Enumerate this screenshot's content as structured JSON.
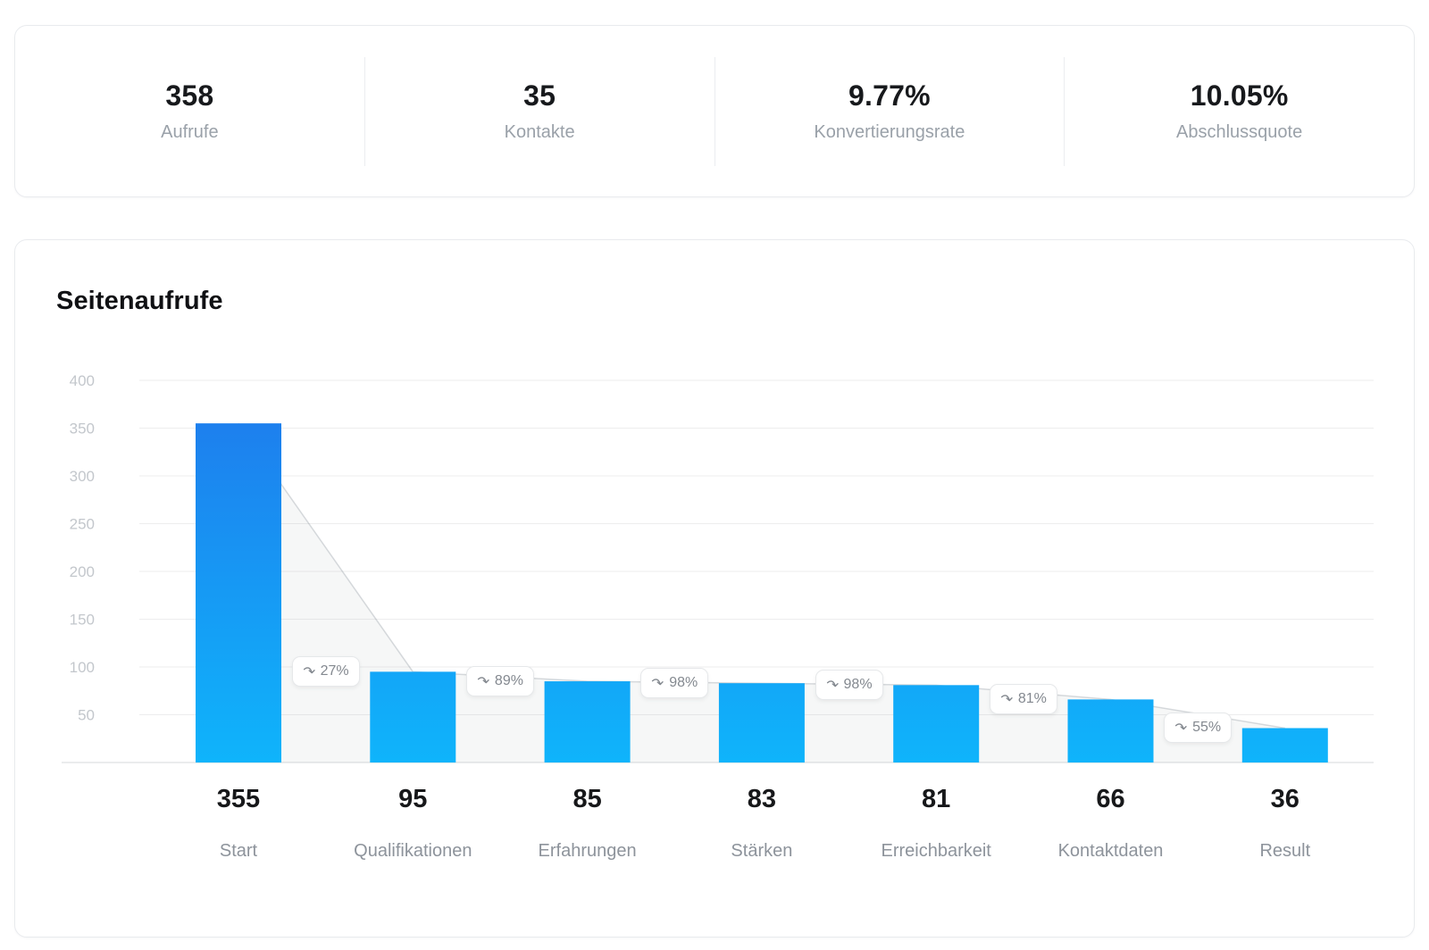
{
  "stats": {
    "items": [
      {
        "value": "358",
        "label": "Aufrufe"
      },
      {
        "value": "35",
        "label": "Kontakte"
      },
      {
        "value": "9.77%",
        "label": "Konvertierungsrate"
      },
      {
        "value": "10.05%",
        "label": "Abschlussquote"
      }
    ]
  },
  "chart_data": {
    "type": "bar",
    "title": "Seitenaufrufe",
    "categories": [
      "Start",
      "Qualifikationen",
      "Erfahrungen",
      "Stärken",
      "Erreichbarkeit",
      "Kontaktdaten",
      "Result"
    ],
    "values": [
      355,
      95,
      85,
      83,
      81,
      66,
      36
    ],
    "drop_badges": [
      "27%",
      "89%",
      "98%",
      "98%",
      "81%",
      "55%"
    ],
    "drop_icon": "arrow-curve-down-icon",
    "y_ticks": [
      400,
      350,
      300,
      250,
      200,
      150,
      100,
      50
    ],
    "ylim": [
      0,
      400
    ],
    "grid": true,
    "legend": "none",
    "xlabel": "",
    "ylabel": "",
    "colors": {
      "bar_gradient_top": "#1f79ec",
      "bar_gradient_bottom": "#0fb4fb",
      "grid_line": "#ededee",
      "axis_line": "#e4e5e7",
      "tick_label": "#c3c7cc",
      "connector_fill": "rgba(125,135,145,0.07)",
      "connector_line": "rgba(125,135,145,0.30)",
      "badge_text": "#83888f",
      "value_label": "#17181a",
      "category_label": "#8d939b"
    }
  }
}
